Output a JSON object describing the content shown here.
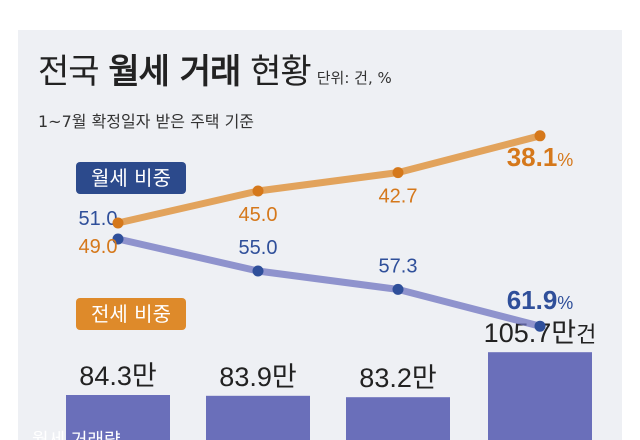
{
  "title": {
    "part1": "전국 ",
    "bold": "월세 거래",
    "part2": " 현황",
    "unit": "단위: 건, %"
  },
  "subtitle": "1~7월 확정일자 받은 주택 기준",
  "colors": {
    "monthly": "#6f74c0",
    "jeonse": "#de8a2a",
    "bar": "#6a6fba",
    "badge_monthly": "#2c4a8c",
    "badge_jeonse": "#de8a2a"
  },
  "chart_data": [
    {
      "type": "line",
      "series": [
        {
          "name": "월세 비중",
          "values": [
            51.0,
            55.0,
            57.3,
            61.9
          ],
          "labels": [
            "51.0",
            "55.0",
            "57.3",
            "61.9%"
          ]
        },
        {
          "name": "전세 비중",
          "values": [
            49.0,
            45.0,
            42.7,
            38.1
          ],
          "labels": [
            "49.0",
            "45.0",
            "42.7",
            "38.1%"
          ]
        }
      ]
    },
    {
      "type": "bar",
      "values": [
        84.3,
        83.9,
        83.2,
        105.7
      ],
      "labels": [
        "84.3만",
        "83.9만",
        "83.2만",
        "105.7만건"
      ],
      "series_label": "월세 거래량"
    }
  ]
}
